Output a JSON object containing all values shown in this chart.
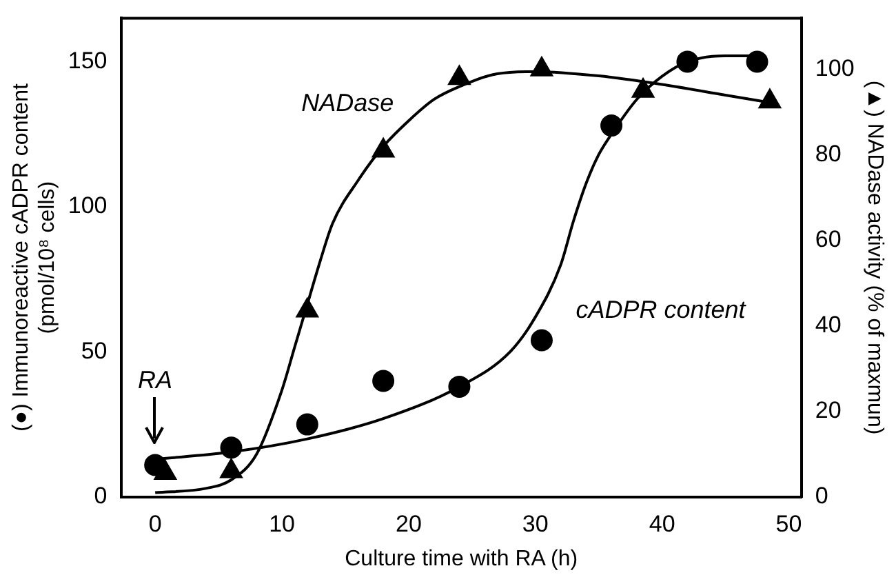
{
  "chart_data": {
    "type": "scatter",
    "xlabel": "Culture time with RA (h)",
    "ylabel": "(●) Immunoreactive cADPR content\n(pmol/10⁸ cells)",
    "y2label": "(▲) NADase activity (% of maxmun)",
    "xlim": [
      -2.7,
      51
    ],
    "xticks": [
      0,
      10,
      20,
      30,
      40,
      50
    ],
    "ylim": [
      0,
      165
    ],
    "yticks": [
      0,
      50,
      100,
      150
    ],
    "y2lim": [
      0,
      112
    ],
    "y2ticks": [
      0,
      20,
      40,
      60,
      80,
      100
    ],
    "grid": false,
    "legend": false,
    "series": [
      {
        "type": "line",
        "marker": "none",
        "color": "#000000",
        "x": [
          0,
          6,
          12,
          18,
          24,
          28,
          30,
          32,
          33,
          34,
          35,
          36,
          38,
          40,
          42,
          45,
          48
        ],
        "values": [
          13,
          15.5,
          20,
          27,
          38,
          50,
          62,
          80,
          95,
          108,
          118,
          125,
          137,
          145,
          150,
          152,
          152
        ]
      },
      {
        "type": "line",
        "marker": "none",
        "color": "#000000",
        "axis": "y2",
        "x": [
          0,
          4,
          6,
          8,
          10,
          11,
          12,
          13,
          14,
          16,
          18,
          20,
          22,
          24,
          27,
          30,
          35,
          40,
          45,
          49
        ],
        "values": [
          1,
          2,
          4,
          10,
          25,
          35,
          45,
          55,
          64,
          74,
          82,
          88,
          93,
          96,
          99,
          99.5,
          98.5,
          96.5,
          94,
          92
        ]
      },
      {
        "type": "scatter",
        "marker": "circle",
        "color": "#000000",
        "x": [
          0,
          6,
          12,
          18,
          24,
          30.5,
          36,
          42,
          47.5
        ],
        "values": [
          11,
          17,
          25,
          40,
          38,
          54,
          128,
          150,
          150
        ]
      },
      {
        "type": "scatter",
        "marker": "triangle",
        "color": "#000000",
        "axis": "y2",
        "x": [
          0.8,
          6,
          12,
          18,
          24,
          30.5,
          38.5,
          48.5
        ],
        "values": [
          5.6,
          6,
          43.6,
          81,
          98,
          100,
          95,
          92.5
        ]
      }
    ],
    "annotations": [
      "NADase",
      "cADPR content",
      "RA"
    ]
  }
}
